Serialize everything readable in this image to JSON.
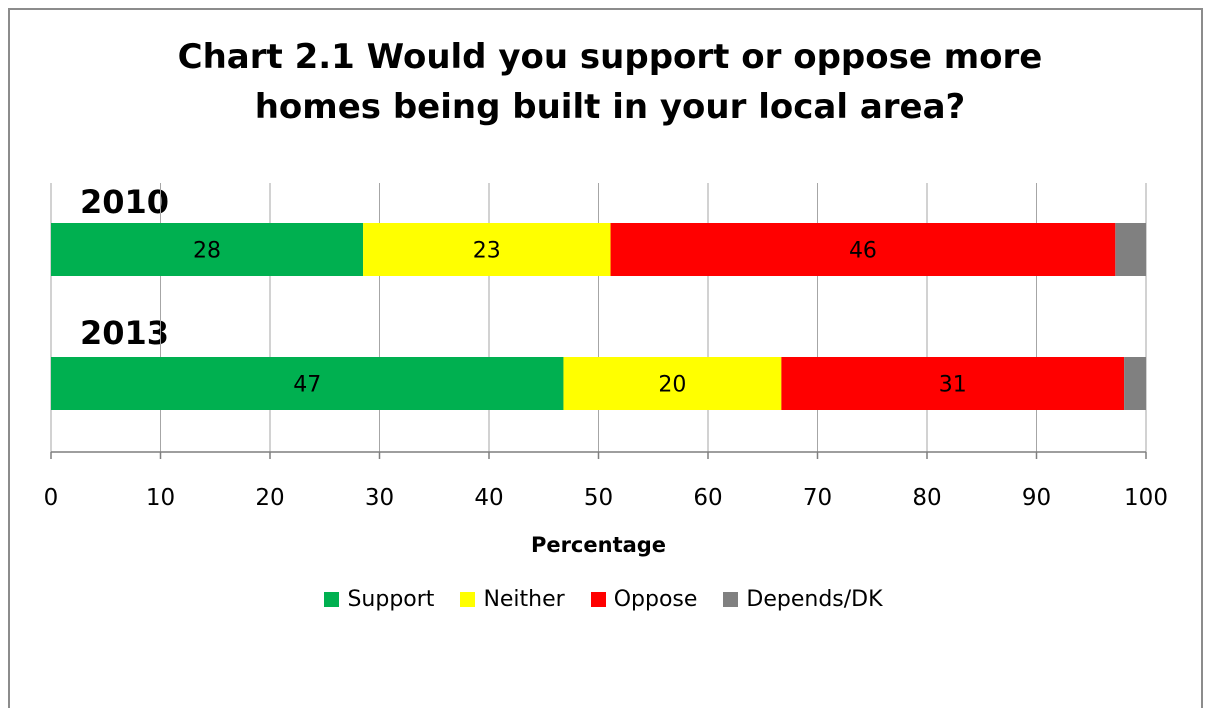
{
  "chart_data": {
    "type": "bar",
    "orientation": "horizontal",
    "stacked": true,
    "title_lines": [
      "Chart 2.1 Would you support or oppose more",
      "homes being built in your local area?"
    ],
    "xlabel": "Percentage",
    "xlim": [
      0,
      100
    ],
    "xticks": [
      0,
      10,
      20,
      30,
      40,
      50,
      60,
      70,
      80,
      90,
      100
    ],
    "grid": true,
    "legend_position": "bottom",
    "categories": [
      "2010",
      "2013"
    ],
    "series": [
      {
        "name": "Support",
        "color": "#00b050",
        "values": [
          28.5,
          46.8
        ],
        "labels": [
          "28",
          "47"
        ]
      },
      {
        "name": "Neither",
        "color": "#ffff00",
        "values": [
          22.6,
          19.9
        ],
        "labels": [
          "23",
          "20"
        ]
      },
      {
        "name": "Oppose",
        "color": "#ff0000",
        "values": [
          46.1,
          31.3
        ],
        "labels": [
          "46",
          "31"
        ]
      },
      {
        "name": "Depends/DK",
        "color": "#808080",
        "values": [
          2.8,
          2.0
        ],
        "labels": [
          "",
          ""
        ]
      }
    ]
  }
}
